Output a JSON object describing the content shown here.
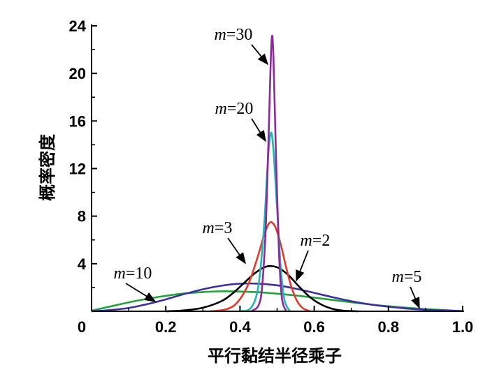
{
  "chart_data": {
    "type": "line",
    "title": "",
    "xlabel": "平行黏结半径乘子",
    "ylabel": "概率密度",
    "xlim": [
      0,
      1.0
    ],
    "ylim": [
      0,
      24
    ],
    "x_ticks": [
      "0",
      "0.2",
      "0.4",
      "0.6",
      "0.8",
      "1.0"
    ],
    "y_ticks": [
      "4",
      "8",
      "12",
      "16",
      "20",
      "24"
    ],
    "grid": false,
    "legend": "none",
    "series": [
      {
        "name": "m=5",
        "color": "#1fa33a",
        "points": [
          [
            0,
            0.05
          ],
          [
            0.05,
            0.4
          ],
          [
            0.1,
            0.75
          ],
          [
            0.15,
            1.05
          ],
          [
            0.2,
            1.3
          ],
          [
            0.25,
            1.5
          ],
          [
            0.3,
            1.62
          ],
          [
            0.35,
            1.68
          ],
          [
            0.4,
            1.66
          ],
          [
            0.45,
            1.6
          ],
          [
            0.5,
            1.48
          ],
          [
            0.55,
            1.33
          ],
          [
            0.6,
            1.15
          ],
          [
            0.65,
            0.95
          ],
          [
            0.7,
            0.76
          ],
          [
            0.75,
            0.58
          ],
          [
            0.8,
            0.42
          ],
          [
            0.85,
            0.3
          ],
          [
            0.9,
            0.18
          ],
          [
            0.95,
            0.1
          ],
          [
            1.0,
            0.02
          ]
        ]
      },
      {
        "name": "m=10",
        "color": "#3d2fa0",
        "points": [
          [
            0,
            0
          ],
          [
            0.05,
            0.1
          ],
          [
            0.1,
            0.28
          ],
          [
            0.15,
            0.6
          ],
          [
            0.2,
            1.0
          ],
          [
            0.25,
            1.45
          ],
          [
            0.3,
            1.85
          ],
          [
            0.35,
            2.15
          ],
          [
            0.4,
            2.32
          ],
          [
            0.45,
            2.32
          ],
          [
            0.5,
            2.18
          ],
          [
            0.55,
            1.9
          ],
          [
            0.6,
            1.55
          ],
          [
            0.65,
            1.18
          ],
          [
            0.7,
            0.85
          ],
          [
            0.75,
            0.58
          ],
          [
            0.8,
            0.38
          ],
          [
            0.85,
            0.23
          ],
          [
            0.9,
            0.13
          ],
          [
            0.95,
            0.06
          ],
          [
            1.0,
            0.02
          ]
        ]
      },
      {
        "name": "m=2",
        "color": "#000000",
        "points": [
          [
            0.2,
            0
          ],
          [
            0.25,
            0.08
          ],
          [
            0.3,
            0.3
          ],
          [
            0.35,
            0.85
          ],
          [
            0.38,
            1.5
          ],
          [
            0.41,
            2.35
          ],
          [
            0.44,
            3.2
          ],
          [
            0.47,
            3.75
          ],
          [
            0.5,
            3.7
          ],
          [
            0.53,
            3.05
          ],
          [
            0.56,
            2.05
          ],
          [
            0.59,
            1.15
          ],
          [
            0.62,
            0.55
          ],
          [
            0.65,
            0.2
          ],
          [
            0.68,
            0.05
          ],
          [
            0.72,
            0
          ]
        ]
      },
      {
        "name": "m=3",
        "color": "#e03a2a",
        "points": [
          [
            0.32,
            0
          ],
          [
            0.36,
            0.15
          ],
          [
            0.39,
            0.65
          ],
          [
            0.42,
            2.1
          ],
          [
            0.445,
            4.3
          ],
          [
            0.465,
            6.4
          ],
          [
            0.48,
            7.45
          ],
          [
            0.495,
            7.1
          ],
          [
            0.51,
            5.6
          ],
          [
            0.525,
            3.6
          ],
          [
            0.54,
            1.9
          ],
          [
            0.555,
            0.8
          ],
          [
            0.57,
            0.25
          ],
          [
            0.59,
            0
          ]
        ]
      },
      {
        "name": "m=20",
        "color": "#25b4b4",
        "points": [
          [
            0.4,
            0
          ],
          [
            0.43,
            0.3
          ],
          [
            0.45,
            2.2
          ],
          [
            0.465,
            7.2
          ],
          [
            0.475,
            12.6
          ],
          [
            0.483,
            15.0
          ],
          [
            0.49,
            13.6
          ],
          [
            0.5,
            8.6
          ],
          [
            0.51,
            3.6
          ],
          [
            0.52,
            0.9
          ],
          [
            0.535,
            0
          ]
        ]
      },
      {
        "name": "m=30",
        "color": "#8a2a9a",
        "points": [
          [
            0.43,
            0
          ],
          [
            0.45,
            0.5
          ],
          [
            0.46,
            2.2
          ],
          [
            0.47,
            7.5
          ],
          [
            0.478,
            15.8
          ],
          [
            0.485,
            22.7
          ],
          [
            0.49,
            21.5
          ],
          [
            0.497,
            13.0
          ],
          [
            0.505,
            5.0
          ],
          [
            0.513,
            1.1
          ],
          [
            0.525,
            0
          ]
        ]
      }
    ],
    "annotations": [
      {
        "var": "m",
        "value": "=30",
        "series": "m=30"
      },
      {
        "var": "m",
        "value": "=20",
        "series": "m=20"
      },
      {
        "var": "m",
        "value": "=3",
        "series": "m=3"
      },
      {
        "var": "m",
        "value": "=2",
        "series": "m=2"
      },
      {
        "var": "m",
        "value": "=10",
        "series": "m=10"
      },
      {
        "var": "m",
        "value": "=5",
        "series": "m=5"
      }
    ]
  }
}
